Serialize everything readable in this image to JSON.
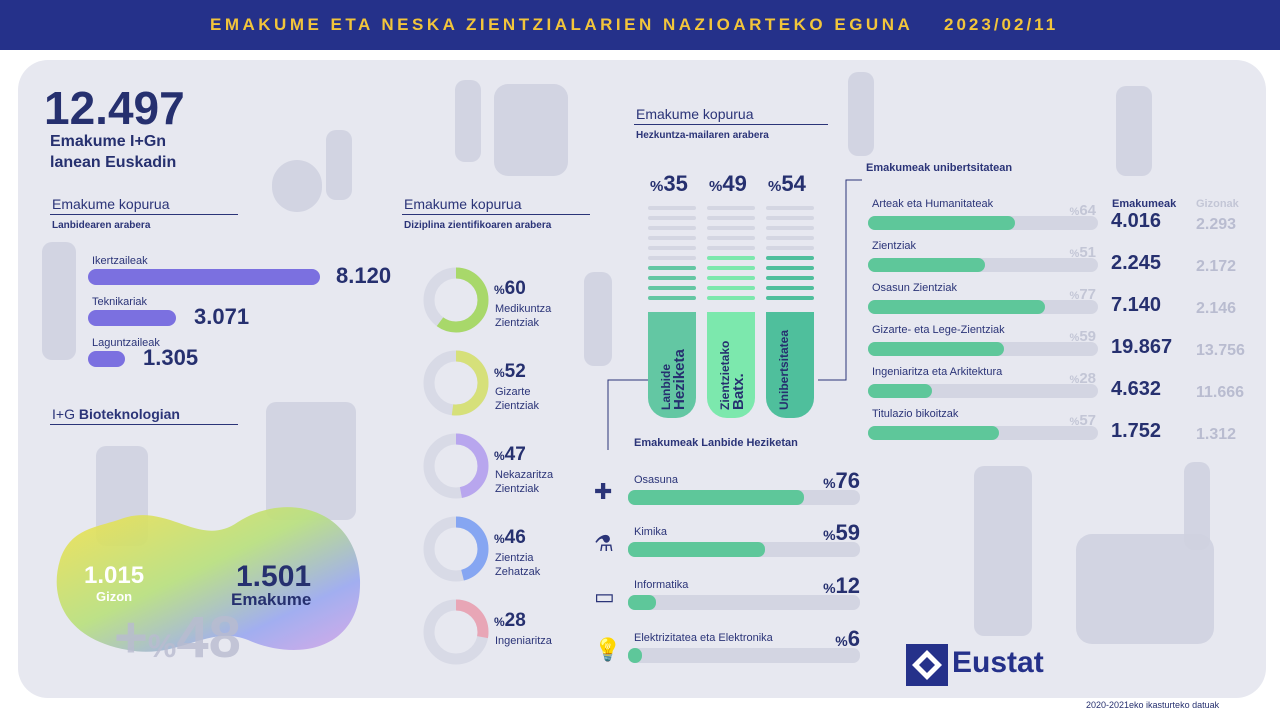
{
  "header": {
    "title": "EMAKUME ETA NESKA ZIENTZIALARIEN NAZIOARTEKO EGUNA",
    "date": "2023/02/11"
  },
  "total": {
    "value": "12.497",
    "line1": "Emakume I+Gn",
    "line2": "lanean Euskadin"
  },
  "occupation": {
    "title": "Emakume kopurua",
    "subtitle": "Lanbidearen arabera",
    "max": 8120,
    "items": [
      {
        "label": "Ikertzaileak",
        "value": 8120,
        "display": "8.120"
      },
      {
        "label": "Teknikariak",
        "value": 3071,
        "display": "3.071"
      },
      {
        "label": "Laguntzaileak",
        "value": 1305,
        "display": "1.305"
      }
    ]
  },
  "biotech": {
    "title_prefix": "I+G ",
    "title_bold": "Bioteknologian",
    "men_value": "1.015",
    "men_label": "Gizon",
    "women_value": "1.501",
    "women_label": "Emakume",
    "diff_sign": "+",
    "diff_pct_symbol": "%",
    "diff_value": "48"
  },
  "discipline": {
    "title": "Emakume kopurua",
    "subtitle": "Diziplina zientifikoaren arabera",
    "items": [
      {
        "pct": 60,
        "l1": "Medikuntza",
        "l2": "Zientziak",
        "color": "#a8d86a"
      },
      {
        "pct": 52,
        "l1": "Gizarte",
        "l2": "Zientziak",
        "color": "#d6e07a"
      },
      {
        "pct": 47,
        "l1": "Nekazaritza",
        "l2": "Zientziak",
        "color": "#b8a6ee"
      },
      {
        "pct": 46,
        "l1": "Zientzia",
        "l2": "Zehatzak",
        "color": "#86a6f2"
      },
      {
        "pct": 28,
        "l1": "Ingeniaritza",
        "l2": "",
        "color": "#e8a6b6"
      }
    ]
  },
  "education": {
    "title": "Emakume kopurua",
    "subtitle": "Hezkuntza-mailaren arabera",
    "pct_symbol": "%",
    "items": [
      {
        "pct": 35,
        "l1": "Lanbide",
        "l2": "Heziketa",
        "color": "#63c7a3"
      },
      {
        "pct": 49,
        "l1": "Zientzietako",
        "l2": "Batx.",
        "color": "#7ce8ad"
      },
      {
        "pct": 54,
        "l1": "Unibertsitatea",
        "l2": "",
        "color": "#4fbf9c"
      }
    ]
  },
  "vocational": {
    "title": "Emakumeak Lanbide Heziketan",
    "pct_symbol": "%",
    "items": [
      {
        "label": "Osasuna",
        "pct": 76,
        "icon": "plus-icon"
      },
      {
        "label": "Kimika",
        "pct": 59,
        "icon": "flask-icon"
      },
      {
        "label": "Informatika",
        "pct": 12,
        "icon": "monitor-icon"
      },
      {
        "label": "Elektrizitatea eta Elektronika",
        "pct": 6,
        "icon": "bulb-icon"
      }
    ]
  },
  "university": {
    "title": "Emakumeak unibertsitatean",
    "col_women": "Emakumeak",
    "col_men": "Gizonak",
    "pct_symbol": "%",
    "items": [
      {
        "label": "Arteak eta Humanitateak",
        "pct": 64,
        "women": "4.016",
        "men": "2.293"
      },
      {
        "label": "Zientziak",
        "pct": 51,
        "women": "2.245",
        "men": "2.172"
      },
      {
        "label": "Osasun Zientziak",
        "pct": 77,
        "women": "7.140",
        "men": "2.146"
      },
      {
        "label": "Gizarte- eta Lege-Zientziak",
        "pct": 59,
        "women": "19.867",
        "men": "13.756"
      },
      {
        "label": "Ingeniaritza eta Arkitektura",
        "pct": 28,
        "women": "4.632",
        "men": "11.666"
      },
      {
        "label": "Titulazio bikoitzak",
        "pct": 57,
        "women": "1.752",
        "men": "1.312"
      }
    ]
  },
  "footer": {
    "logo_text": "Eustat",
    "note": "2020-2021eko ikasturteko datuak"
  },
  "colors": {
    "navy": "#25318a",
    "gold": "#f2c53b",
    "purple_bar": "#7b70e0",
    "green_bar": "#5ec79a"
  },
  "chart_data": [
    {
      "type": "bar",
      "title": "Emakume kopurua",
      "subtitle": "Lanbidearen arabera",
      "categories": [
        "Ikertzaileak",
        "Teknikariak",
        "Laguntzaileak"
      ],
      "values": [
        8120,
        3071,
        1305
      ]
    },
    {
      "type": "pie",
      "title": "Emakume kopurua",
      "subtitle": "Diziplina zientifikoaren arabera",
      "categories": [
        "Medikuntza Zientziak",
        "Gizarte Zientziak",
        "Nekazaritza Zientziak",
        "Zientzia Zehatzak",
        "Ingeniaritza"
      ],
      "values": [
        60,
        52,
        47,
        46,
        28
      ]
    },
    {
      "type": "bar",
      "title": "Emakume kopurua",
      "subtitle": "Hezkuntza-mailaren arabera",
      "categories": [
        "Lanbide Heziketa",
        "Zientzietako Batx.",
        "Unibertsitatea"
      ],
      "values": [
        35,
        49,
        54
      ]
    },
    {
      "type": "bar",
      "title": "Emakumeak Lanbide Heziketan",
      "categories": [
        "Osasuna",
        "Kimika",
        "Informatika",
        "Elektrizitatea eta Elektronika"
      ],
      "values": [
        76,
        59,
        12,
        6
      ]
    },
    {
      "type": "bar",
      "title": "Emakumeak unibertsitatean",
      "categories": [
        "Arteak eta Humanitateak",
        "Zientziak",
        "Osasun Zientziak",
        "Gizarte- eta Lege-Zientziak",
        "Ingeniaritza eta Arkitektura",
        "Titulazio bikoitzak"
      ],
      "series": [
        {
          "name": "Emakumeak",
          "values": [
            4016,
            2245,
            7140,
            19867,
            4632,
            1752
          ]
        },
        {
          "name": "Gizonak",
          "values": [
            2293,
            2172,
            2146,
            13756,
            11666,
            1312
          ]
        }
      ],
      "percent_women": [
        64,
        51,
        77,
        59,
        28,
        57
      ]
    },
    {
      "type": "bar",
      "title": "I+G Bioteknologian",
      "categories": [
        "Gizon",
        "Emakume"
      ],
      "values": [
        1015,
        1501
      ]
    }
  ]
}
